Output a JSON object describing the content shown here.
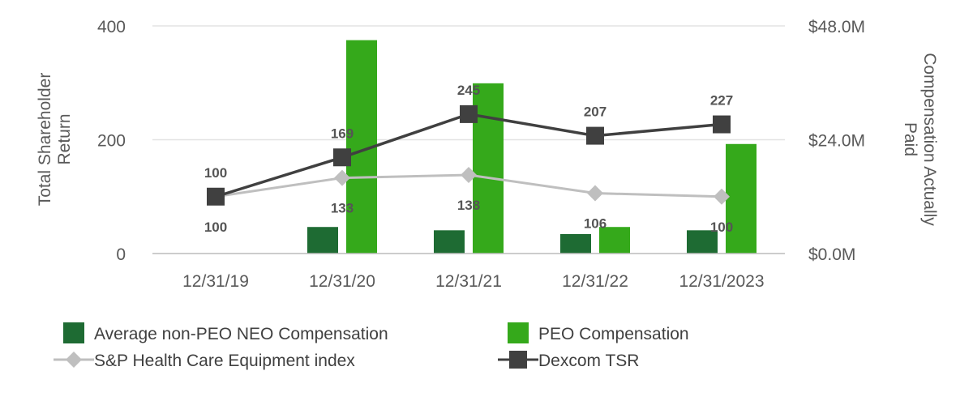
{
  "chart_data": {
    "type": "bar",
    "categories": [
      "12/31/19",
      "12/31/20",
      "12/31/21",
      "12/31/22",
      "12/31/2023"
    ],
    "left_axis": {
      "label": "Total Shareholder Return",
      "range": [
        0,
        400
      ],
      "ticks": [
        "0",
        "200",
        "400"
      ]
    },
    "right_axis": {
      "label": "Compensation Actually Paid",
      "range": [
        0,
        48
      ],
      "unit": "M",
      "ticks": [
        "$0.0M",
        "$24.0M",
        "$48.0M"
      ]
    },
    "grid": true,
    "legend_position": "bottom",
    "series": [
      {
        "name": "Average non-PEO NEO Compensation",
        "kind": "bar",
        "axis": "right",
        "color": "#1e6b33",
        "values": [
          0,
          5.6,
          4.9,
          4.1,
          4.9
        ]
      },
      {
        "name": "PEO Compensation",
        "kind": "bar",
        "axis": "right",
        "color": "#35a91b",
        "values": [
          0,
          45.0,
          35.9,
          5.6,
          23.1
        ]
      },
      {
        "name": "S&P Health Care Equipment index",
        "kind": "line",
        "axis": "left",
        "color": "#bfbfbf",
        "marker": "diamond",
        "values": [
          100,
          133,
          138,
          106,
          100
        ],
        "labels": [
          "100",
          "133",
          "138",
          "106",
          "100"
        ]
      },
      {
        "name": "Dexcom TSR",
        "kind": "line",
        "axis": "left",
        "color": "#404040",
        "marker": "square",
        "values": [
          100,
          169,
          245,
          207,
          227
        ],
        "labels": [
          "100",
          "169",
          "245",
          "207",
          "227"
        ]
      }
    ]
  }
}
